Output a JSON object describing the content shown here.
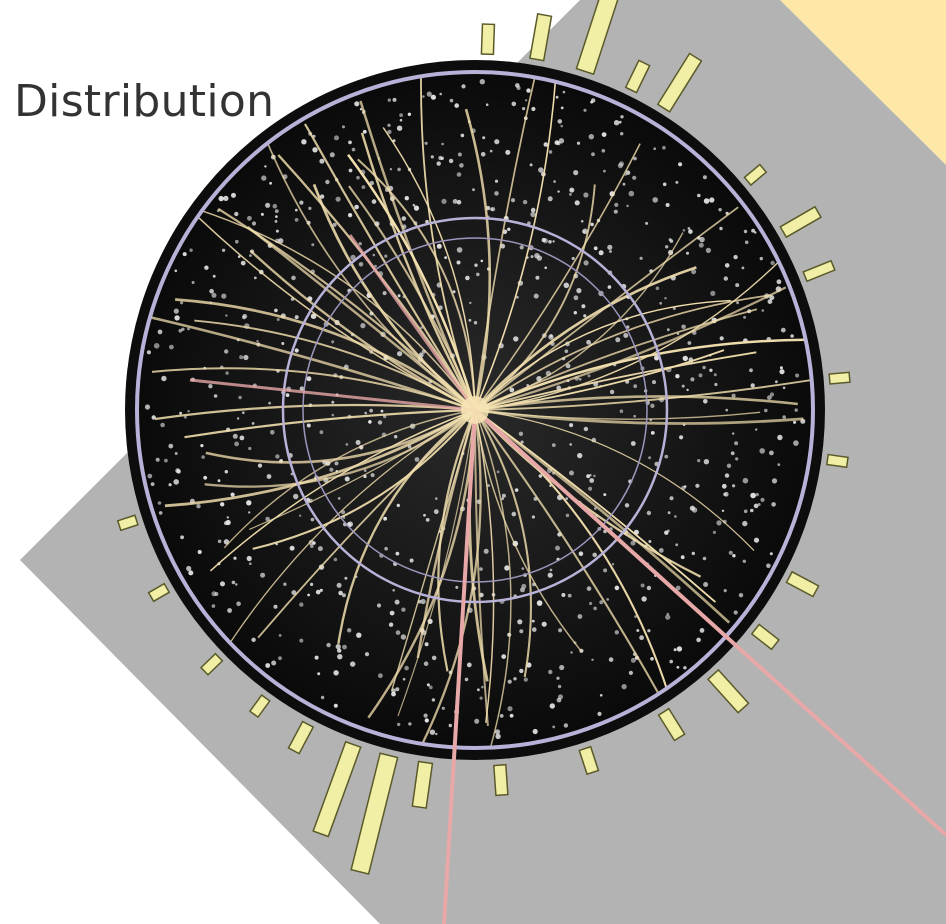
{
  "slide": {
    "title": "Distribution"
  },
  "image": {
    "subject": "particle-collision-event-display",
    "colors": {
      "backdrop": "#b3b3b3",
      "corner_accent": "#fde8a8",
      "detector_bg": "#0b0b0b",
      "ring": "#b9b2d8",
      "track": "#f2dfae",
      "hit": "#e9e9e9",
      "lepton_line": "#e8a8a8",
      "calorimeter": "#f1efa6"
    }
  }
}
